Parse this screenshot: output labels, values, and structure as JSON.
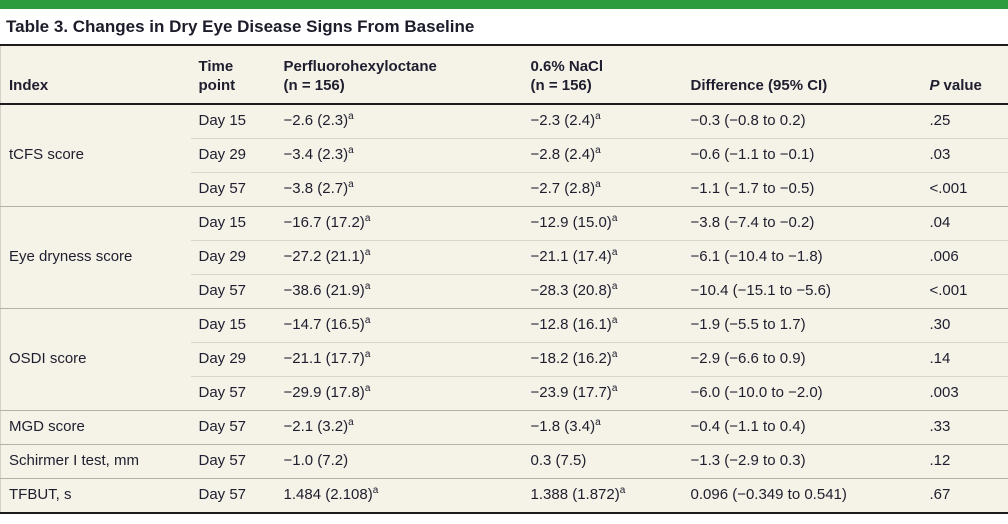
{
  "colors": {
    "accent_green": "#2d9c3e",
    "table_background": "#f5f2e8",
    "dark_rule": "#1c1c1c",
    "group_separator": "#b3b0a5",
    "row_separator": "#d8d5ca",
    "text": "#1e1e2e"
  },
  "title": "Table 3. Changes in Dry Eye Disease Signs From Baseline",
  "table": {
    "header": {
      "index": "Index",
      "time_l1": "Time",
      "time_l2": "point",
      "pfho_l1": "Perfluorohexyloctane",
      "pfho_l2": "(n = 156)",
      "nacl_l1": "0.6% NaCl",
      "nacl_l2": "(n = 156)",
      "diff": "Difference (95% CI)",
      "p_italic": "P",
      "p_rest": "value"
    },
    "groups": [
      {
        "index": "tCFS score",
        "rows": [
          {
            "time": "Day 15",
            "pfho": "−2.6 (2.3)",
            "pfho_sup": "a",
            "nacl": "−2.3 (2.4)",
            "nacl_sup": "a",
            "diff": "−0.3 (−0.8 to 0.2)",
            "p": ".25"
          },
          {
            "time": "Day 29",
            "pfho": "−3.4 (2.3)",
            "pfho_sup": "a",
            "nacl": "−2.8 (2.4)",
            "nacl_sup": "a",
            "diff": "−0.6 (−1.1 to −0.1)",
            "p": ".03"
          },
          {
            "time": "Day 57",
            "pfho": "−3.8 (2.7)",
            "pfho_sup": "a",
            "nacl": "−2.7 (2.8)",
            "nacl_sup": "a",
            "diff": "−1.1 (−1.7 to −0.5)",
            "p": "<.001"
          }
        ]
      },
      {
        "index": "Eye dryness score",
        "rows": [
          {
            "time": "Day 15",
            "pfho": "−16.7 (17.2)",
            "pfho_sup": "a",
            "nacl": "−12.9 (15.0)",
            "nacl_sup": "a",
            "diff": "−3.8 (−7.4 to −0.2)",
            "p": ".04"
          },
          {
            "time": "Day 29",
            "pfho": "−27.2 (21.1)",
            "pfho_sup": "a",
            "nacl": "−21.1 (17.4)",
            "nacl_sup": "a",
            "diff": "−6.1 (−10.4 to −1.8)",
            "p": ".006"
          },
          {
            "time": "Day 57",
            "pfho": "−38.6 (21.9)",
            "pfho_sup": "a",
            "nacl": "−28.3 (20.8)",
            "nacl_sup": "a",
            "diff": "−10.4 (−15.1 to −5.6)",
            "p": "<.001"
          }
        ]
      },
      {
        "index": "OSDI score",
        "rows": [
          {
            "time": "Day 15",
            "pfho": "−14.7 (16.5)",
            "pfho_sup": "a",
            "nacl": "−12.8 (16.1)",
            "nacl_sup": "a",
            "diff": "−1.9 (−5.5 to 1.7)",
            "p": ".30"
          },
          {
            "time": "Day 29",
            "pfho": "−21.1 (17.7)",
            "pfho_sup": "a",
            "nacl": "−18.2 (16.2)",
            "nacl_sup": "a",
            "diff": "−2.9 (−6.6 to 0.9)",
            "p": ".14"
          },
          {
            "time": "Day 57",
            "pfho": "−29.9 (17.8)",
            "pfho_sup": "a",
            "nacl": "−23.9 (17.7)",
            "nacl_sup": "a",
            "diff": "−6.0 (−10.0 to −2.0)",
            "p": ".003"
          }
        ]
      },
      {
        "index": "MGD score",
        "rows": [
          {
            "time": "Day 57",
            "pfho": "−2.1 (3.2)",
            "pfho_sup": "a",
            "nacl": "−1.8 (3.4)",
            "nacl_sup": "a",
            "diff": "−0.4 (−1.1 to 0.4)",
            "p": ".33"
          }
        ]
      },
      {
        "index": "Schirmer I test, mm",
        "rows": [
          {
            "time": "Day 57",
            "pfho": "−1.0 (7.2)",
            "pfho_sup": "",
            "nacl": "0.3 (7.5)",
            "nacl_sup": "",
            "diff": "−1.3 (−2.9 to 0.3)",
            "p": ".12"
          }
        ]
      },
      {
        "index": "TFBUT, s",
        "rows": [
          {
            "time": "Day 57",
            "pfho": "1.484 (2.108)",
            "pfho_sup": "a",
            "nacl": "1.388 (1.872)",
            "nacl_sup": "a",
            "diff": "0.096 (−0.349 to 0.541)",
            "p": ".67"
          }
        ]
      }
    ]
  }
}
